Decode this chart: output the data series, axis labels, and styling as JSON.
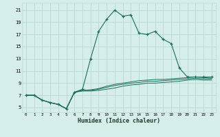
{
  "xlabel": "Humidex (Indice chaleur)",
  "bg_color": "#d6eeea",
  "grid_color": "#b8d8d2",
  "line_color": "#1a6b5a",
  "x_ticks": [
    0,
    1,
    2,
    3,
    4,
    5,
    6,
    7,
    8,
    9,
    10,
    11,
    12,
    13,
    14,
    15,
    16,
    17,
    18,
    19,
    20,
    21,
    22,
    23
  ],
  "y_ticks": [
    5,
    7,
    9,
    11,
    13,
    15,
    17,
    19,
    21
  ],
  "ylim": [
    4.2,
    22.2
  ],
  "xlim": [
    -0.5,
    23.5
  ],
  "series": [
    {
      "x": [
        0,
        1,
        2,
        3,
        4,
        5,
        6,
        7,
        8,
        9,
        10,
        11,
        12,
        13,
        14,
        15,
        16,
        17,
        18,
        19,
        20,
        21,
        22,
        23
      ],
      "y": [
        7.0,
        7.0,
        6.2,
        5.8,
        5.5,
        4.8,
        7.5,
        8.0,
        13.0,
        17.5,
        19.5,
        21.0,
        20.0,
        20.2,
        17.2,
        17.0,
        17.5,
        16.2,
        15.5,
        11.5,
        10.0,
        10.0,
        10.0,
        10.0
      ],
      "style": "-",
      "marker": "+"
    },
    {
      "x": [
        0,
        1,
        2,
        3,
        4,
        5,
        6,
        7,
        8,
        9,
        10,
        11,
        12,
        13,
        14,
        15,
        16,
        17,
        18,
        19,
        20,
        21,
        22,
        23
      ],
      "y": [
        7.0,
        7.0,
        6.2,
        5.8,
        5.5,
        4.8,
        7.5,
        7.8,
        7.9,
        8.1,
        8.5,
        8.8,
        9.0,
        9.2,
        9.4,
        9.5,
        9.6,
        9.6,
        9.7,
        9.8,
        9.9,
        10.0,
        9.9,
        9.8
      ],
      "style": "-",
      "marker": null
    },
    {
      "x": [
        0,
        1,
        2,
        3,
        4,
        5,
        6,
        7,
        8,
        9,
        10,
        11,
        12,
        13,
        14,
        15,
        16,
        17,
        18,
        19,
        20,
        21,
        22,
        23
      ],
      "y": [
        7.0,
        7.0,
        6.2,
        5.8,
        5.5,
        4.8,
        7.5,
        7.8,
        7.8,
        8.0,
        8.3,
        8.6,
        8.8,
        9.0,
        9.1,
        9.3,
        9.3,
        9.4,
        9.5,
        9.6,
        9.7,
        9.8,
        9.7,
        9.7
      ],
      "style": "-",
      "marker": null
    },
    {
      "x": [
        0,
        1,
        2,
        3,
        4,
        5,
        6,
        7,
        8,
        9,
        10,
        11,
        12,
        13,
        14,
        15,
        16,
        17,
        18,
        19,
        20,
        21,
        22,
        23
      ],
      "y": [
        7.0,
        7.0,
        6.2,
        5.8,
        5.5,
        4.8,
        7.5,
        7.7,
        7.7,
        7.8,
        8.0,
        8.2,
        8.5,
        8.7,
        8.8,
        9.0,
        9.0,
        9.1,
        9.2,
        9.3,
        9.5,
        9.6,
        9.5,
        9.5
      ],
      "style": "-",
      "marker": null
    }
  ]
}
